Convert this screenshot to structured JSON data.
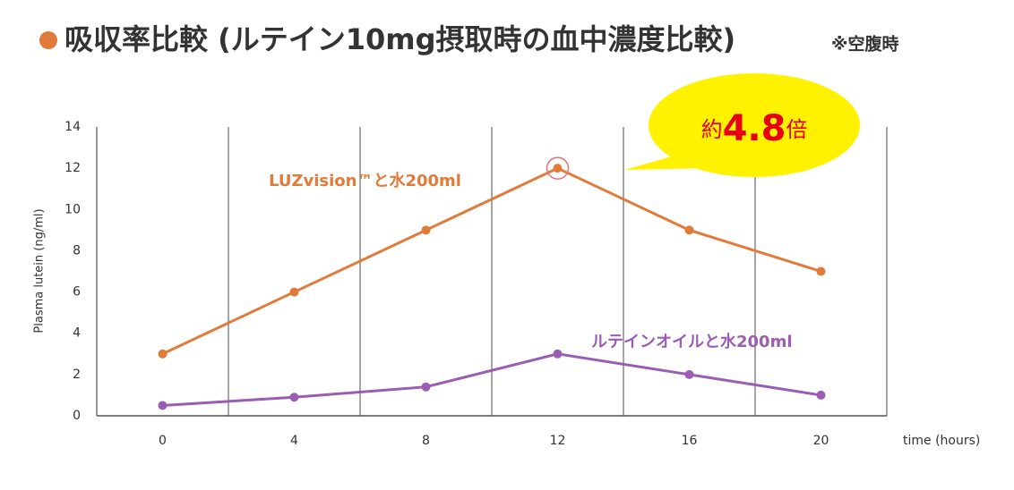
{
  "chart_data": {
    "type": "line",
    "title": "吸収率比較 (ルテイン10mg摂取時の血中濃度比較)",
    "subtitle": "※空腹時",
    "x": [
      0,
      4,
      8,
      12,
      16,
      20
    ],
    "series": [
      {
        "name": "LUZvision™と水200ml",
        "color": "#e07b39",
        "values": [
          3,
          6,
          9,
          12,
          9,
          7
        ]
      },
      {
        "name": "ルテインオイルと水200ml",
        "color": "#9b5cb4",
        "values": [
          0.5,
          0.9,
          1.4,
          3,
          2,
          1
        ]
      }
    ],
    "xlabel": "time (hours)",
    "ylabel": "Plasma lutein (ng/ml)",
    "xlim": [
      -2,
      22
    ],
    "xticks": [
      0,
      4,
      8,
      12,
      16,
      20
    ],
    "ylim": [
      0,
      14
    ],
    "yticks": [
      0,
      2,
      4,
      6,
      8,
      10,
      12,
      14
    ],
    "grid": true,
    "annotation": {
      "text": [
        "約",
        "4.8",
        "倍"
      ],
      "color": "#e60012",
      "background": "#fff200"
    }
  }
}
